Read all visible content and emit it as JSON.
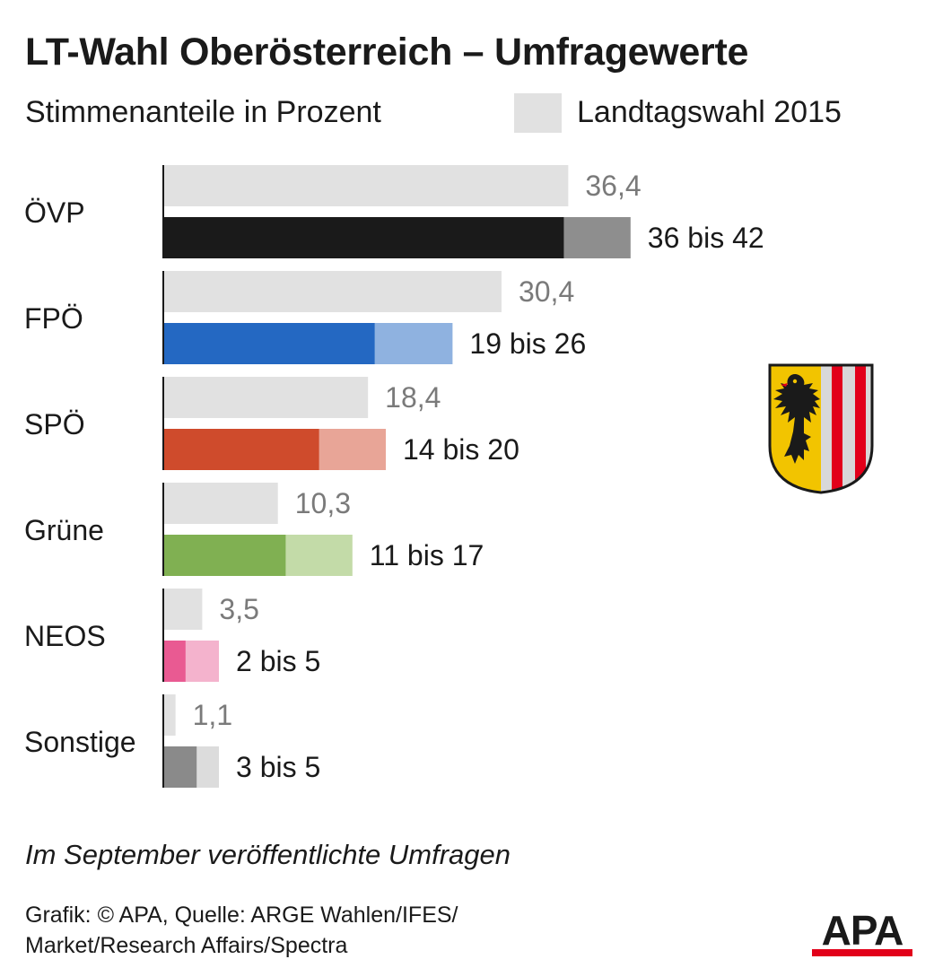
{
  "title": "LT-Wahl Oberösterreich – Umfragewerte",
  "subtitle": "Stimmenanteile in Prozent",
  "legend": {
    "label": "Landtagswahl 2015",
    "color": "#e1e1e1"
  },
  "chart_data": {
    "type": "bar",
    "orientation": "horizontal",
    "title": "LT-Wahl Oberösterreich – Umfragewerte",
    "subtitle": "Stimmenanteile in Prozent",
    "categories": [
      "ÖVP",
      "FPÖ",
      "SPÖ",
      "Grüne",
      "NEOS",
      "Sonstige"
    ],
    "series": [
      {
        "name": "Landtagswahl 2015",
        "values": [
          36.4,
          30.4,
          18.4,
          10.3,
          3.5,
          1.1
        ],
        "labels": [
          "36,4",
          "30,4",
          "18,4",
          "10,3",
          "3,5",
          "1,1"
        ],
        "color": "#e1e1e1"
      },
      {
        "values_low": [
          36,
          19,
          14,
          11,
          2,
          3
        ],
        "values_high": [
          42,
          26,
          20,
          17,
          5,
          5
        ],
        "labels": [
          "36 bis 42",
          "19 bis 26",
          "14 bis 20",
          "11 bis 17",
          "2 bis 5",
          "3 bis 5"
        ],
        "colors_low": [
          "#1a1a1a",
          "#2468c2",
          "#cf4b2c",
          "#80b052",
          "#e95a92",
          "#8a8a8a"
        ],
        "colors_high": [
          "#8e8e8e",
          "#8fb2e0",
          "#e8a597",
          "#c3dba8",
          "#f4b3cd",
          "#dcdcdc"
        ]
      }
    ],
    "xlim": [
      0,
      42
    ],
    "grid": false,
    "legend_position": "top-right"
  },
  "note": "Im September veröffentlichte Umfragen",
  "credit_line1": "Grafik: © APA, Quelle: ARGE Wahlen/IFES/",
  "credit_line2": "Market/Research Affairs/Spectra",
  "logo_text": "APA",
  "colors": {
    "text": "#1a1a1a",
    "value_2015": "#7a7a7a",
    "axis": "#1a1a1a",
    "logo_red": "#e2001a"
  }
}
